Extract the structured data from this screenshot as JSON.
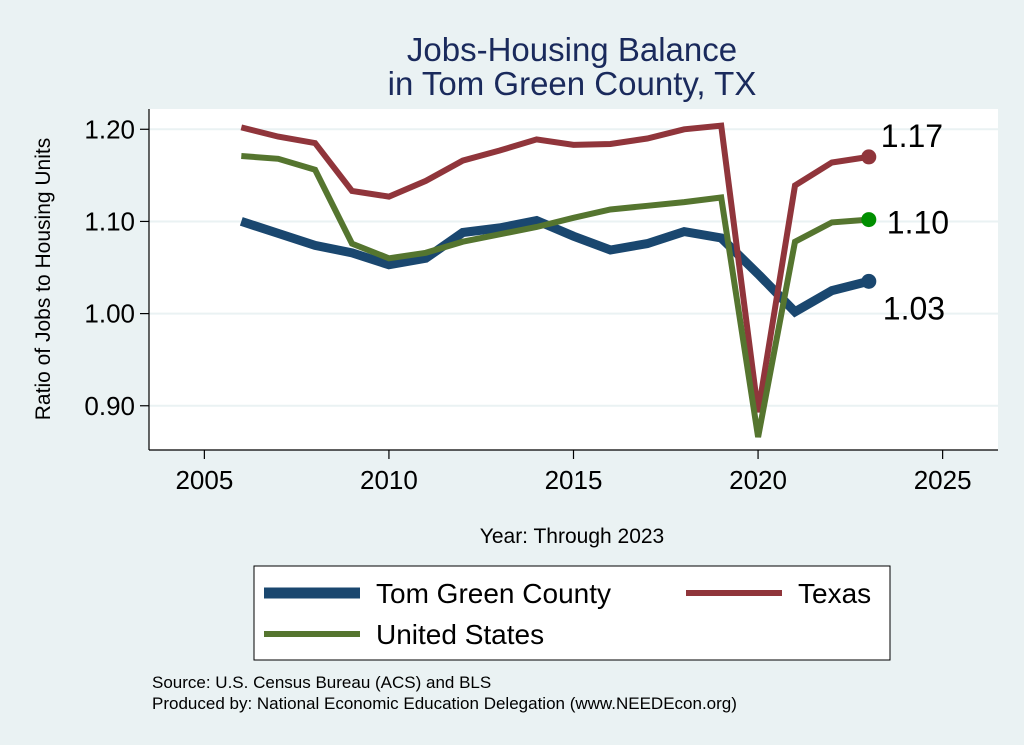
{
  "chart_data": {
    "type": "line",
    "title": [
      "Jobs-Housing Balance",
      "in Tom Green County, TX"
    ],
    "xlabel": "Year: Through 2023",
    "ylabel": "Ratio of Jobs to Housing Units",
    "xlim": [
      2003.5,
      2026.5
    ],
    "ylim": [
      0.852,
      1.222
    ],
    "xticks": [
      2005,
      2010,
      2015,
      2020,
      2025
    ],
    "yticks": [
      0.9,
      1.0,
      1.1,
      1.2
    ],
    "ytick_labels": [
      "0.90",
      "1.00",
      "1.10",
      "1.20"
    ],
    "grid": true,
    "x": [
      2006,
      2007,
      2008,
      2009,
      2010,
      2011,
      2012,
      2013,
      2014,
      2015,
      2016,
      2017,
      2018,
      2019,
      2020,
      2021,
      2022,
      2023
    ],
    "series": [
      {
        "name": "Tom Green County",
        "color": "#1a476f",
        "values": [
          1.1,
          1.087,
          1.074,
          1.066,
          1.053,
          1.06,
          1.088,
          1.093,
          1.101,
          1.084,
          1.069,
          1.076,
          1.089,
          1.082,
          1.043,
          1.002,
          1.025,
          1.035
        ],
        "end_label": "1.03"
      },
      {
        "name": "Texas",
        "color": "#90353b",
        "values": [
          1.202,
          1.192,
          1.185,
          1.133,
          1.127,
          1.144,
          1.166,
          1.177,
          1.189,
          1.183,
          1.184,
          1.19,
          1.2,
          1.204,
          0.893,
          1.139,
          1.164,
          1.17
        ],
        "end_label": "1.17"
      },
      {
        "name": "United States",
        "color": "#55752f",
        "values": [
          1.171,
          1.168,
          1.156,
          1.076,
          1.06,
          1.066,
          1.078,
          1.086,
          1.094,
          1.104,
          1.113,
          1.117,
          1.121,
          1.126,
          0.866,
          1.078,
          1.099,
          1.102
        ],
        "end_label": "1.10",
        "marker_color": "#008f00"
      }
    ],
    "legend": [
      "Tom Green County",
      "Texas",
      "United States"
    ],
    "legend_position": "bottom"
  },
  "source": {
    "line1": "Source: U.S. Census Bureau (ACS) and BLS",
    "line2": "Produced by: National Economic Education Delegation (www.NEEDEcon.org)"
  }
}
